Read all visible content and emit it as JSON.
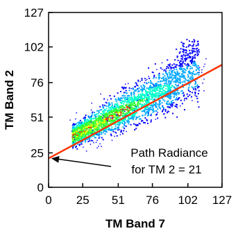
{
  "chart_data": {
    "type": "scatter",
    "xlabel": "TM Band 7",
    "ylabel": "TM Band 2",
    "xlim": [
      0,
      127
    ],
    "ylim": [
      0,
      127
    ],
    "xticks": [
      "0",
      "25",
      "51",
      "76",
      "102",
      "127"
    ],
    "yticks": [
      "0",
      "25",
      "51",
      "76",
      "102",
      "127"
    ],
    "grid": false,
    "density_colormap": [
      "#0000ff",
      "#00a8ff",
      "#00ffcc",
      "#33ff33",
      "#ffff00",
      "#ff2200"
    ],
    "fit_line": {
      "color": "#ff3300",
      "points": [
        [
          0,
          21
        ],
        [
          127,
          89
        ]
      ]
    },
    "annotation": {
      "lines": [
        "Path Radiance",
        "for TM 2 = 21"
      ],
      "arrow_target": [
        0,
        21
      ]
    },
    "density_description_points": [
      [
        20,
        33
      ],
      [
        30,
        38
      ],
      [
        40,
        43
      ],
      [
        51,
        46
      ],
      [
        60,
        52
      ],
      [
        76,
        60
      ],
      [
        90,
        68
      ],
      [
        102,
        80
      ],
      [
        105,
        95
      ]
    ]
  }
}
